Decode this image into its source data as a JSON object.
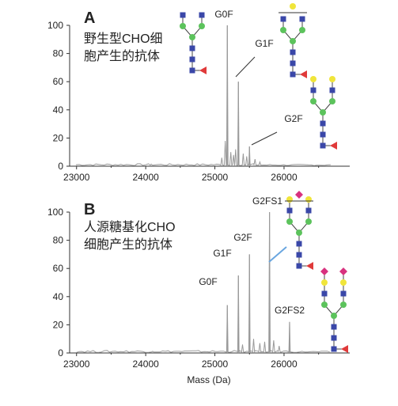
{
  "figure": {
    "xlabel": "Mass (Da)"
  },
  "chart_data": [
    {
      "type": "line",
      "panel": "A",
      "note_lines": [
        "野生型CHO细",
        "胞产生的抗体"
      ],
      "xlabel": "",
      "ylabel": "",
      "xlim": [
        22900,
        26950
      ],
      "ylim": [
        0,
        100
      ],
      "xticks": [
        23000,
        24000,
        25000,
        26000
      ],
      "yticks": [
        0,
        20,
        40,
        60,
        80,
        100
      ],
      "grid": false,
      "peaks": [
        {
          "label": "G0F",
          "mass": 25180,
          "intensity": 100
        },
        {
          "label": "G1F",
          "mass": 25340,
          "intensity": 60
        },
        {
          "label": "G2F",
          "mass": 25500,
          "intensity": 14
        }
      ],
      "minor_peaks": [
        {
          "mass": 24080,
          "intensity": 1.5
        },
        {
          "mass": 25100,
          "intensity": 6
        },
        {
          "mass": 25150,
          "intensity": 18
        },
        {
          "mass": 25230,
          "intensity": 10
        },
        {
          "mass": 25270,
          "intensity": 8
        },
        {
          "mass": 25300,
          "intensity": 12
        },
        {
          "mass": 25410,
          "intensity": 9
        },
        {
          "mass": 25460,
          "intensity": 7
        },
        {
          "mass": 25580,
          "intensity": 5
        },
        {
          "mass": 25650,
          "intensity": 3
        }
      ]
    },
    {
      "type": "line",
      "panel": "B",
      "note_lines": [
        "人源糖基化CHO",
        "细胞产生的抗体"
      ],
      "xlabel": "Mass (Da)",
      "ylabel": "",
      "xlim": [
        22900,
        26950
      ],
      "ylim": [
        0,
        100
      ],
      "xticks": [
        23000,
        24000,
        25000,
        26000
      ],
      "yticks": [
        0,
        20,
        40,
        60,
        80,
        100
      ],
      "grid": false,
      "peaks": [
        {
          "label": "G0F",
          "mass": 25180,
          "intensity": 34
        },
        {
          "label": "G1F",
          "mass": 25340,
          "intensity": 55
        },
        {
          "label": "G2F",
          "mass": 25500,
          "intensity": 70
        },
        {
          "label": "G2FS1",
          "mass": 25790,
          "intensity": 100
        },
        {
          "label": "G2FS2",
          "mass": 26080,
          "intensity": 22
        }
      ],
      "minor_peaks": [
        {
          "mass": 24100,
          "intensity": 1.2
        },
        {
          "mass": 25400,
          "intensity": 6
        },
        {
          "mass": 25560,
          "intensity": 10
        },
        {
          "mass": 25650,
          "intensity": 7
        },
        {
          "mass": 25720,
          "intensity": 8
        },
        {
          "mass": 25850,
          "intensity": 9
        },
        {
          "mass": 25930,
          "intensity": 5
        }
      ]
    }
  ],
  "colors": {
    "trace": "#9a9a9a",
    "axis": "#333333",
    "glcnac": "#3a47a8",
    "mannose": "#5cc35c",
    "galactose": "#f0e53a",
    "fucose": "#e03a3a",
    "sialic": "#d8317f",
    "leader_dark": "#333333",
    "leader_blue": "#6aa6e0"
  },
  "glycans": [
    "G0F-glycan",
    "G1F-glycan",
    "G2F-glycan",
    "G2FS1-glycan",
    "G2FS2-glycan"
  ]
}
